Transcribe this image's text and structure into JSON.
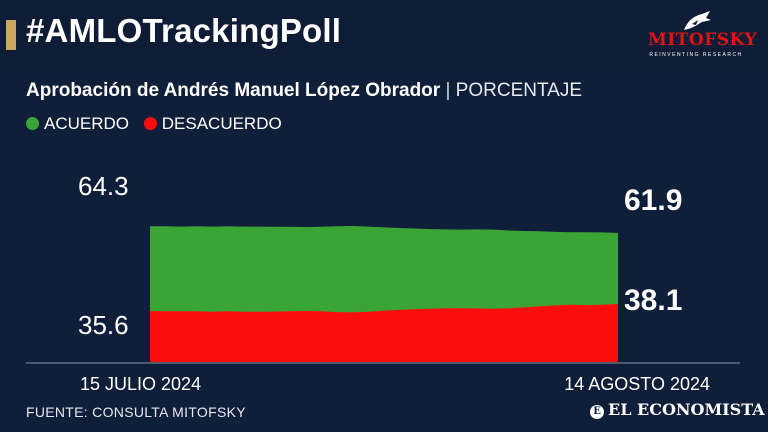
{
  "header": {
    "title": "#AMLOTrackingPoll",
    "logo_text": "MITOFSKY",
    "logo_tagline": "REINVENTING RESEARCH"
  },
  "subtitle": {
    "main": "Aprobación de Andrés Manuel López Obrador",
    "separator": "|",
    "unit": "PORCENTAJE"
  },
  "legend": [
    {
      "label": "ACUERDO",
      "color": "#3aa535"
    },
    {
      "label": "DESACUERDO",
      "color": "#ff0d0d"
    }
  ],
  "footer": {
    "source": "FUENTE: CONSULTA MITOFSKY",
    "brand": "EL ECONOMISTA"
  },
  "colors": {
    "background": "#0f1f3a",
    "acuerdo": "#3aa535",
    "desacuerdo": "#ff0d0d",
    "accent": "#c9a55f"
  },
  "chart_data": {
    "type": "area",
    "title": "Aprobación de Andrés Manuel López Obrador",
    "unit": "PORCENTAJE",
    "x_start_label": "15 JULIO 2024",
    "x_end_label": "14 AGOSTO 2024",
    "x": [
      "2024-07-15",
      "2024-07-16",
      "2024-07-17",
      "2024-07-18",
      "2024-07-19",
      "2024-07-20",
      "2024-07-21",
      "2024-07-22",
      "2024-07-23",
      "2024-07-24",
      "2024-07-25",
      "2024-07-26",
      "2024-07-27",
      "2024-07-28",
      "2024-07-29",
      "2024-07-30",
      "2024-07-31",
      "2024-08-01",
      "2024-08-02",
      "2024-08-03",
      "2024-08-04",
      "2024-08-05",
      "2024-08-06",
      "2024-08-07",
      "2024-08-08",
      "2024-08-09",
      "2024-08-10",
      "2024-08-11",
      "2024-08-12",
      "2024-08-13",
      "2024-08-14"
    ],
    "series": [
      {
        "name": "ACUERDO",
        "values": [
          64.3,
          64.3,
          64.2,
          64.3,
          64.2,
          64.3,
          64.2,
          64.2,
          64.1,
          64.1,
          64.0,
          64.1,
          64.3,
          64.4,
          64.2,
          63.9,
          63.7,
          63.5,
          63.3,
          63.2,
          63.1,
          63.2,
          63.1,
          62.8,
          62.6,
          62.5,
          62.3,
          62.2,
          62.2,
          62.1,
          61.9
        ]
      },
      {
        "name": "DESACUERDO",
        "values": [
          35.6,
          35.5,
          35.5,
          35.5,
          35.3,
          35.5,
          35.3,
          35.3,
          35.4,
          35.5,
          35.6,
          35.5,
          35.2,
          35.1,
          35.3,
          35.7,
          36.0,
          36.2,
          36.4,
          36.6,
          36.6,
          36.5,
          36.4,
          36.6,
          36.9,
          37.3,
          37.6,
          37.8,
          37.7,
          37.8,
          38.1
        ]
      }
    ],
    "first_labels": [
      "64.3",
      "35.6"
    ],
    "last_labels": [
      "61.9",
      "38.1"
    ],
    "legend_position": "top-left"
  }
}
